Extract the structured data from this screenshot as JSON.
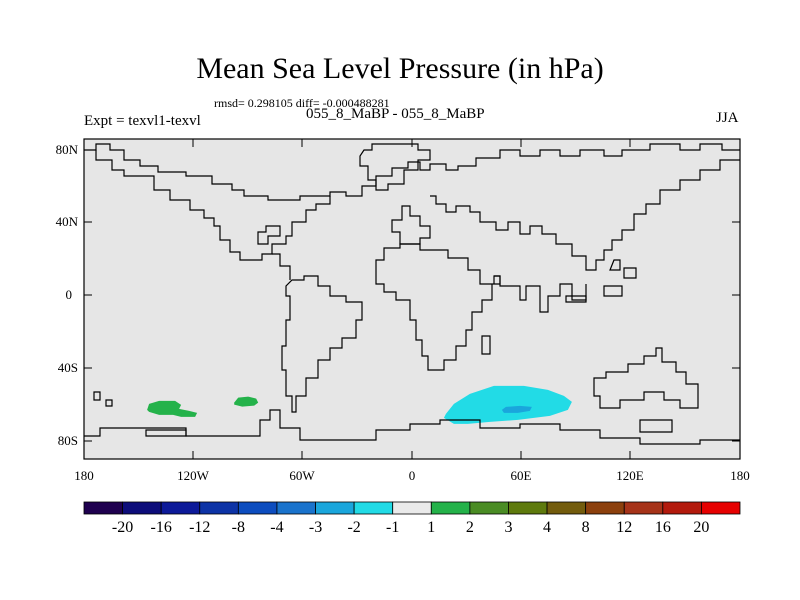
{
  "header": {
    "title": "Mean Sea Level Pressure (in hPa)",
    "stats": "rmsd= 0.298105 diff= -0.000488281",
    "comparison": "055_8_MaBP - 055_8_MaBP",
    "experiment": "Expt = texvl1-texvl",
    "season": "JJA"
  },
  "map": {
    "background": "#e6e6e6",
    "lat_ticks": [
      "80N",
      "40N",
      "0",
      "40S",
      "80S"
    ],
    "lon_ticks": [
      "180",
      "120W",
      "60W",
      "0",
      "60E",
      "120E",
      "180"
    ],
    "features": [
      {
        "name": "positive-anomaly-1",
        "lon": -130,
        "lat": -61,
        "color": "#24b24a"
      },
      {
        "name": "positive-anomaly-2",
        "lon": -91,
        "lat": -57,
        "color": "#24b24a"
      },
      {
        "name": "negative-anomaly",
        "lon": 57,
        "lat": -61,
        "color": "#22dbe6"
      },
      {
        "name": "negative-anomaly-core",
        "lon": 57,
        "lat": -61,
        "color": "#1aa6dc"
      }
    ]
  },
  "colorbar": {
    "colors": [
      "#1f004f",
      "#0d0d7a",
      "#0d1a99",
      "#0d33a6",
      "#0d4dbf",
      "#1a73cc",
      "#1aa6dc",
      "#22dbe6",
      "#eaeaea",
      "#24b24a",
      "#4a8c24",
      "#5e7a0d",
      "#735c0d",
      "#8c400d",
      "#a63319",
      "#b31a0d",
      "#e60000"
    ],
    "labels": [
      "-20",
      "-16",
      "-12",
      "-8",
      "-4",
      "-3",
      "-2",
      "-1",
      "1",
      "2",
      "3",
      "4",
      "8",
      "12",
      "16",
      "20"
    ]
  }
}
